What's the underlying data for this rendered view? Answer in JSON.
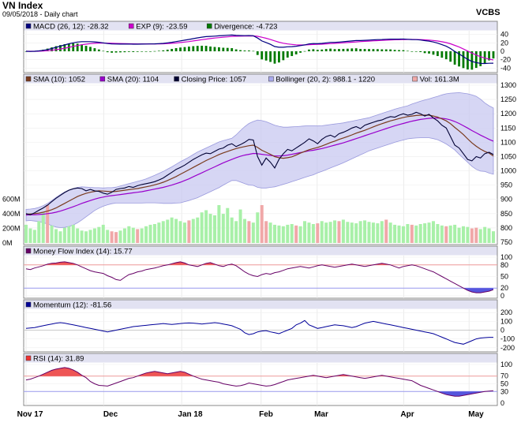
{
  "header": {
    "title": "VN Index",
    "subtitle": "09/05/2018 - Daily chart",
    "brand": "VCBS"
  },
  "colors": {
    "macd": "#000080",
    "exp": "#cc00cc",
    "divergence": "#007a00",
    "sma10": "#7a3b1e",
    "sma20": "#9900cc",
    "close": "#000033",
    "bollinger_fill": "#c8c8f0",
    "bollinger_edge": "#9999dd",
    "vol_up": "#a8f0a8",
    "vol_down": "#f0a8a8",
    "overbought": "#ee5555",
    "oversold": "#5555dd",
    "line": "#660066",
    "momentum": "#000099"
  },
  "chart_data": {
    "type": "line",
    "x_ticks": [
      "Nov 17",
      "Dec",
      "Jan 18",
      "Feb",
      "Mar",
      "Apr",
      "May"
    ],
    "panels": [
      {
        "id": "macd",
        "legend": [
          {
            "swatch": "#000080",
            "label": "MACD (26, 12): -28.32"
          },
          {
            "swatch": "#cc00cc",
            "label": "EXP (9): -23.59"
          },
          {
            "swatch": "#007a00",
            "label": "Divergence: -4.723"
          }
        ],
        "y_ticks": [
          "40",
          "20",
          "0",
          "-20",
          "-40"
        ],
        "ylim": [
          -45,
          45
        ]
      },
      {
        "id": "price",
        "legend": [
          {
            "swatch": "#7a3b1e",
            "label": "SMA (10): 1052"
          },
          {
            "swatch": "#9900cc",
            "label": "SMA (20): 1104"
          },
          {
            "swatch": "#000033",
            "label": "Closing Price: 1057"
          },
          {
            "swatch": "#aaaaee",
            "label": "Bollinger (20, 2): 988.1 - 1220"
          },
          {
            "swatch": "#f0a8a8",
            "label": "Vol: 161.3M"
          }
        ],
        "y_ticks": [
          "1300",
          "1250",
          "1200",
          "1150",
          "1100",
          "1050",
          "1000",
          "950",
          "900",
          "850",
          "800",
          "750"
        ],
        "ylim": [
          750,
          1300
        ],
        "volume_ticks": [
          "600M",
          "400M",
          "200M",
          "0M"
        ],
        "volume_max": 650,
        "close": [
          850,
          846,
          853,
          862,
          870,
          880,
          892,
          904,
          914,
          924,
          932,
          937,
          940,
          938,
          930,
          935,
          930,
          928,
          922,
          918,
          925,
          935,
          938,
          940,
          945,
          942,
          948,
          952,
          955,
          958,
          962,
          968,
          975,
          985,
          995,
          1005,
          1012,
          1020,
          1030,
          1040,
          1048,
          1056,
          1062,
          1060,
          1068,
          1076,
          1080,
          1090,
          1095,
          1085,
          1092,
          1100,
          1110,
          1108,
          1050,
          1020,
          1045,
          1030,
          1010,
          1040,
          1060,
          1075,
          1070,
          1080,
          1090,
          1100,
          1112,
          1105,
          1095,
          1110,
          1120,
          1125,
          1118,
          1130,
          1135,
          1142,
          1150,
          1155,
          1148,
          1160,
          1165,
          1170,
          1175,
          1178,
          1185,
          1190,
          1188,
          1195,
          1200,
          1195,
          1198,
          1205,
          1200,
          1192,
          1198,
          1185,
          1175,
          1160,
          1150,
          1120,
          1090,
          1080,
          1060,
          1040,
          1035,
          1050,
          1045,
          1060,
          1065,
          1057
        ],
        "sma10": [
          848,
          849,
          850,
          852,
          855,
          859,
          864,
          870,
          878,
          886,
          894,
          902,
          910,
          916,
          921,
          925,
          928,
          930,
          929,
          928,
          927,
          928,
          930,
          932,
          934,
          936,
          938,
          941,
          944,
          947,
          951,
          955,
          960,
          966,
          973,
          980,
          988,
          996,
          1004,
          1012,
          1020,
          1028,
          1036,
          1043,
          1050,
          1057,
          1063,
          1068,
          1073,
          1078,
          1082,
          1085,
          1088,
          1090,
          1082,
          1072,
          1065,
          1058,
          1050,
          1046,
          1044,
          1046,
          1049,
          1055,
          1062,
          1068,
          1074,
          1078,
          1082,
          1087,
          1093,
          1099,
          1104,
          1110,
          1115,
          1120,
          1126,
          1132,
          1137,
          1142,
          1148,
          1154,
          1160,
          1165,
          1170,
          1175,
          1179,
          1183,
          1187,
          1190,
          1192,
          1194,
          1195,
          1195,
          1195,
          1192,
          1188,
          1182,
          1175,
          1165,
          1152,
          1140,
          1127,
          1112,
          1098,
          1086,
          1076,
          1068,
          1062,
          1052
        ],
        "sma20": [
          845,
          846,
          846,
          847,
          848,
          850,
          852,
          855,
          859,
          864,
          869,
          874,
          880,
          886,
          891,
          896,
          901,
          905,
          908,
          911,
          913,
          915,
          917,
          919,
          921,
          923,
          925,
          927,
          930,
          933,
          936,
          939,
          942,
          946,
          950,
          955,
          960,
          966,
          972,
          979,
          986,
          993,
          1000,
          1007,
          1014,
          1021,
          1028,
          1034,
          1040,
          1046,
          1051,
          1055,
          1058,
          1061,
          1060,
          1058,
          1056,
          1054,
          1052,
          1052,
          1053,
          1055,
          1058,
          1061,
          1064,
          1067,
          1070,
          1072,
          1075,
          1078,
          1082,
          1086,
          1090,
          1094,
          1098,
          1103,
          1108,
          1113,
          1118,
          1123,
          1128,
          1133,
          1138,
          1143,
          1148,
          1153,
          1158,
          1162,
          1166,
          1170,
          1174,
          1177,
          1180,
          1182,
          1184,
          1185,
          1185,
          1184,
          1182,
          1178,
          1173,
          1166,
          1158,
          1150,
          1141,
          1133,
          1125,
          1118,
          1110,
          1104
        ],
        "band_width": [
          20,
          20,
          22,
          25,
          30,
          36,
          44,
          52,
          58,
          62,
          64,
          64,
          62,
          58,
          52,
          46,
          40,
          36,
          32,
          30,
          28,
          28,
          30,
          32,
          34,
          36,
          38,
          40,
          42,
          45,
          48,
          52,
          56,
          60,
          64,
          68,
          72,
          74,
          76,
          78,
          80,
          80,
          80,
          80,
          80,
          80,
          78,
          76,
          74,
          80,
          90,
          100,
          108,
          112,
          118,
          118,
          116,
          112,
          108,
          104,
          100,
          98,
          96,
          94,
          92,
          90,
          88,
          86,
          82,
          80,
          78,
          76,
          74,
          72,
          70,
          68,
          66,
          64,
          62,
          60,
          58,
          58,
          58,
          58,
          58,
          58,
          58,
          58,
          58,
          58,
          60,
          62,
          64,
          66,
          68,
          72,
          76,
          82,
          88,
          94,
          100,
          108,
          114,
          120,
          125,
          128,
          126,
          120,
          118,
          116
        ],
        "volume": [
          250,
          200,
          180,
          300,
          420,
          520,
          240,
          190,
          160,
          210,
          230,
          250,
          200,
          170,
          160,
          180,
          200,
          220,
          250,
          180,
          160,
          150,
          170,
          200,
          230,
          210,
          190,
          200,
          230,
          250,
          260,
          280,
          300,
          320,
          350,
          330,
          300,
          280,
          310,
          330,
          350,
          420,
          450,
          400,
          380,
          520,
          400,
          480,
          350,
          300,
          460,
          330,
          300,
          280,
          420,
          520,
          300,
          280,
          250,
          240,
          230,
          250,
          260,
          240,
          230,
          300,
          280,
          260,
          270,
          300,
          280,
          290,
          310,
          300,
          320,
          290,
          280,
          270,
          300,
          310,
          290,
          280,
          270,
          300,
          320,
          280,
          250,
          240,
          230,
          260,
          250,
          240,
          260,
          270,
          280,
          300,
          260,
          240,
          230,
          240,
          250,
          210,
          230,
          220,
          200,
          210,
          190,
          220,
          200,
          161
        ],
        "volume_down_idx": [
          5,
          20,
          21,
          26,
          38,
          52,
          55,
          56,
          63,
          68,
          73,
          84,
          90,
          98,
          104,
          105
        ]
      },
      {
        "id": "mfi",
        "legend": [
          {
            "swatch": "#660066",
            "label": "Money Flow Index (14): 15.77"
          }
        ],
        "y_ticks": [
          "100",
          "80",
          "50",
          "20",
          "0"
        ],
        "ylim": [
          0,
          100
        ],
        "overbought": 80,
        "oversold": 20,
        "values": [
          70,
          68,
          72,
          75,
          78,
          82,
          84,
          85,
          87,
          88,
          86,
          84,
          80,
          75,
          70,
          65,
          62,
          60,
          58,
          52,
          48,
          42,
          40,
          48,
          55,
          58,
          62,
          64,
          68,
          70,
          72,
          75,
          78,
          80,
          83,
          86,
          88,
          85,
          80,
          78,
          76,
          80,
          84,
          86,
          82,
          78,
          76,
          80,
          82,
          78,
          70,
          62,
          56,
          52,
          50,
          55,
          58,
          56,
          60,
          62,
          66,
          70,
          72,
          74,
          76,
          74,
          72,
          75,
          78,
          80,
          78,
          76,
          74,
          76,
          78,
          80,
          82,
          80,
          78,
          76,
          78,
          80,
          82,
          84,
          82,
          80,
          76,
          72,
          76,
          78,
          80,
          78,
          74,
          70,
          66,
          62,
          56,
          50,
          44,
          38,
          32,
          26,
          20,
          14,
          10,
          8,
          8,
          10,
          12,
          16
        ]
      },
      {
        "id": "momentum",
        "legend": [
          {
            "swatch": "#000099",
            "label": "Momentum (12): -81.56"
          }
        ],
        "y_ticks": [
          "200",
          "100",
          "0",
          "-100",
          "-200"
        ],
        "ylim": [
          -220,
          220
        ],
        "values": [
          20,
          25,
          30,
          40,
          50,
          60,
          70,
          80,
          85,
          80,
          70,
          60,
          50,
          40,
          30,
          20,
          10,
          0,
          -10,
          -20,
          -10,
          0,
          10,
          20,
          30,
          40,
          45,
          50,
          55,
          60,
          65,
          70,
          75,
          70,
          65,
          70,
          75,
          80,
          82,
          80,
          75,
          70,
          75,
          80,
          85,
          80,
          70,
          60,
          50,
          30,
          10,
          -30,
          -50,
          -40,
          -20,
          -10,
          -5,
          -20,
          -30,
          -40,
          -20,
          0,
          20,
          60,
          80,
          110,
          60,
          40,
          20,
          30,
          40,
          50,
          60,
          55,
          50,
          40,
          30,
          40,
          60,
          80,
          90,
          100,
          90,
          80,
          70,
          60,
          50,
          40,
          30,
          20,
          10,
          0,
          -10,
          -20,
          -30,
          -40,
          -60,
          -80,
          -100,
          -120,
          -140,
          -150,
          -160,
          -140,
          -120,
          -100,
          -90,
          -85,
          -82,
          -82
        ]
      },
      {
        "id": "rsi",
        "legend": [
          {
            "swatch": "#ee3333",
            "label": "RSI (14): 31.89"
          }
        ],
        "y_ticks": [
          "100",
          "70",
          "50",
          "30",
          "0"
        ],
        "ylim": [
          0,
          100
        ],
        "overbought": 70,
        "oversold": 30,
        "values": [
          60,
          62,
          66,
          70,
          75,
          80,
          85,
          88,
          90,
          92,
          90,
          86,
          80,
          72,
          66,
          56,
          50,
          46,
          45,
          44,
          48,
          52,
          56,
          60,
          64,
          66,
          70,
          74,
          78,
          80,
          82,
          80,
          78,
          76,
          78,
          80,
          82,
          80,
          75,
          70,
          66,
          62,
          60,
          58,
          56,
          54,
          50,
          48,
          46,
          44,
          45,
          48,
          52,
          50,
          48,
          46,
          44,
          45,
          48,
          52,
          56,
          60,
          62,
          64,
          66,
          68,
          70,
          72,
          70,
          68,
          66,
          68,
          70,
          72,
          74,
          72,
          70,
          68,
          66,
          64,
          66,
          68,
          70,
          72,
          70,
          68,
          66,
          64,
          62,
          60,
          58,
          52,
          46,
          42,
          38,
          34,
          30,
          26,
          22,
          20,
          18,
          18,
          20,
          22,
          24,
          26,
          28,
          30,
          31,
          32
        ]
      }
    ]
  }
}
